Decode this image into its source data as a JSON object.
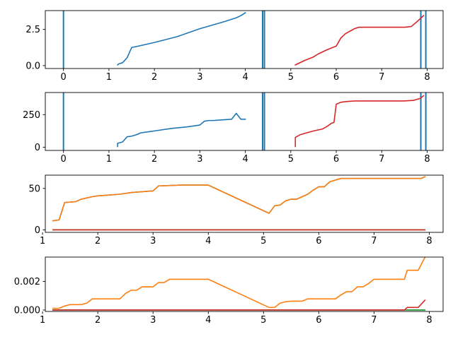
{
  "chart_data": [
    {
      "type": "line",
      "xlim": [
        -0.4,
        8.35
      ],
      "ylim": [
        -0.2,
        3.8
      ],
      "x_ticks": [
        0,
        1,
        2,
        3,
        4,
        5,
        6,
        7,
        8
      ],
      "x_tick_labels": [
        "0",
        "1",
        "2",
        "3",
        "4",
        "5",
        "6",
        "7",
        "8"
      ],
      "y_ticks": [
        0,
        2.5
      ],
      "y_tick_labels": [
        "0.0",
        "2.5"
      ],
      "vlines": [
        0,
        4.38,
        4.42,
        7.86,
        7.97
      ],
      "vline_color": "#1f77b4",
      "series": [
        {
          "color": "#1f77b4",
          "points": [
            [
              1.19,
              0.05
            ],
            [
              1.22,
              0.13
            ],
            [
              1.3,
              0.2
            ],
            [
              1.4,
              0.55
            ],
            [
              1.5,
              1.25
            ],
            [
              1.65,
              1.35
            ],
            [
              2.0,
              1.6
            ],
            [
              2.5,
              2.0
            ],
            [
              3.0,
              2.55
            ],
            [
              3.5,
              3.0
            ],
            [
              3.8,
              3.3
            ],
            [
              3.9,
              3.45
            ],
            [
              4.0,
              3.65
            ]
          ]
        },
        {
          "color": "#d62728",
          "points": [
            [
              5.1,
              0.05
            ],
            [
              5.3,
              0.35
            ],
            [
              5.5,
              0.6
            ],
            [
              5.6,
              0.8
            ],
            [
              5.8,
              1.1
            ],
            [
              6.0,
              1.35
            ],
            [
              6.1,
              1.9
            ],
            [
              6.2,
              2.2
            ],
            [
              6.4,
              2.55
            ],
            [
              6.5,
              2.65
            ],
            [
              6.8,
              2.65
            ],
            [
              7.0,
              2.65
            ],
            [
              7.5,
              2.65
            ],
            [
              7.65,
              2.7
            ],
            [
              7.8,
              3.1
            ],
            [
              7.92,
              3.45
            ]
          ]
        }
      ]
    },
    {
      "type": "line",
      "xlim": [
        -0.4,
        8.35
      ],
      "ylim": [
        -25,
        420
      ],
      "x_ticks": [
        0,
        1,
        2,
        3,
        4,
        5,
        6,
        7,
        8
      ],
      "x_tick_labels": [
        "0",
        "1",
        "2",
        "3",
        "4",
        "5",
        "6",
        "7",
        "8"
      ],
      "y_ticks": [
        0,
        250
      ],
      "y_tick_labels": [
        "0",
        "250"
      ],
      "vlines": [
        0,
        4.38,
        4.42,
        7.86,
        7.97
      ],
      "vline_color": "#1f77b4",
      "series": [
        {
          "color": "#1f77b4",
          "points": [
            [
              1.19,
              5
            ],
            [
              1.19,
              30
            ],
            [
              1.3,
              40
            ],
            [
              1.4,
              80
            ],
            [
              1.5,
              85
            ],
            [
              1.6,
              95
            ],
            [
              1.7,
              110
            ],
            [
              1.9,
              120
            ],
            [
              2.0,
              125
            ],
            [
              2.2,
              135
            ],
            [
              2.4,
              145
            ],
            [
              2.7,
              155
            ],
            [
              3.0,
              170
            ],
            [
              3.1,
              200
            ],
            [
              3.2,
              205
            ],
            [
              3.3,
              205
            ],
            [
              3.5,
              210
            ],
            [
              3.7,
              215
            ],
            [
              3.8,
              260
            ],
            [
              3.9,
              215
            ],
            [
              4.0,
              215
            ]
          ]
        },
        {
          "color": "#d62728",
          "points": [
            [
              5.1,
              5
            ],
            [
              5.1,
              75
            ],
            [
              5.2,
              95
            ],
            [
              5.3,
              105
            ],
            [
              5.5,
              125
            ],
            [
              5.7,
              140
            ],
            [
              5.8,
              160
            ],
            [
              5.9,
              185
            ],
            [
              5.95,
              190
            ],
            [
              6.0,
              330
            ],
            [
              6.1,
              345
            ],
            [
              6.2,
              350
            ],
            [
              6.4,
              355
            ],
            [
              6.5,
              355
            ],
            [
              7.0,
              355
            ],
            [
              7.5,
              355
            ],
            [
              7.7,
              360
            ],
            [
              7.85,
              375
            ],
            [
              7.92,
              395
            ]
          ]
        }
      ]
    },
    {
      "type": "line",
      "xlim": [
        1.05,
        8.25
      ],
      "ylim": [
        -3,
        66
      ],
      "x_ticks": [
        1,
        2,
        3,
        4,
        5,
        6,
        7,
        8
      ],
      "x_tick_labels": [
        "1",
        "2",
        "3",
        "4",
        "5",
        "6",
        "7",
        "8"
      ],
      "y_ticks": [
        0,
        50
      ],
      "y_tick_labels": [
        "0",
        "50"
      ],
      "vlines": [],
      "series": [
        {
          "color": "#1f77b4",
          "points": [
            [
              1.19,
              11
            ],
            [
              1.3,
              12
            ],
            [
              1.4,
              33
            ],
            [
              1.6,
              34
            ],
            [
              1.7,
              37
            ],
            [
              1.9,
              40
            ],
            [
              2.0,
              41
            ],
            [
              2.2,
              42
            ],
            [
              2.4,
              43
            ],
            [
              2.6,
              45
            ],
            [
              2.8,
              46
            ],
            [
              3.0,
              47
            ],
            [
              3.1,
              53
            ],
            [
              3.3,
              53.5
            ],
            [
              3.5,
              54
            ],
            [
              4.0,
              54
            ],
            [
              5.1,
              20
            ],
            [
              5.2,
              29
            ],
            [
              5.3,
              30
            ],
            [
              5.4,
              35
            ],
            [
              5.5,
              37
            ],
            [
              5.6,
              37
            ],
            [
              5.8,
              43
            ],
            [
              5.9,
              48
            ],
            [
              6.0,
              52
            ],
            [
              6.1,
              52
            ],
            [
              6.2,
              58
            ],
            [
              6.4,
              62
            ],
            [
              6.5,
              62
            ],
            [
              7.0,
              62
            ],
            [
              7.5,
              62
            ],
            [
              7.85,
              62
            ],
            [
              7.92,
              64
            ]
          ]
        },
        {
          "color": "#ff7f0e",
          "points": [
            [
              1.19,
              11
            ],
            [
              1.3,
              12
            ],
            [
              1.4,
              33
            ],
            [
              1.6,
              34
            ],
            [
              1.7,
              37
            ],
            [
              1.9,
              40
            ],
            [
              2.0,
              41
            ],
            [
              2.2,
              42
            ],
            [
              2.4,
              43
            ],
            [
              2.6,
              45
            ],
            [
              2.8,
              46
            ],
            [
              3.0,
              47
            ],
            [
              3.1,
              53
            ],
            [
              3.3,
              53.5
            ],
            [
              3.5,
              54
            ],
            [
              4.0,
              54
            ],
            [
              5.1,
              20
            ],
            [
              5.2,
              29
            ],
            [
              5.3,
              30
            ],
            [
              5.4,
              35
            ],
            [
              5.5,
              37
            ],
            [
              5.6,
              37
            ],
            [
              5.8,
              43
            ],
            [
              5.9,
              48
            ],
            [
              6.0,
              52
            ],
            [
              6.1,
              52
            ],
            [
              6.2,
              58
            ],
            [
              6.4,
              62
            ],
            [
              6.5,
              62
            ],
            [
              7.0,
              62
            ],
            [
              7.5,
              62
            ],
            [
              7.85,
              62
            ],
            [
              7.92,
              64
            ]
          ]
        },
        {
          "color": "#2ca02c",
          "points": [
            [
              1.19,
              0
            ],
            [
              7.92,
              0
            ]
          ]
        },
        {
          "color": "#d62728",
          "points": [
            [
              1.19,
              0
            ],
            [
              7.92,
              0
            ]
          ]
        }
      ]
    },
    {
      "type": "line",
      "xlim": [
        1.05,
        8.25
      ],
      "ylim": [
        -0.0001,
        0.0037
      ],
      "x_ticks": [
        1,
        2,
        3,
        4,
        5,
        6,
        7,
        8
      ],
      "x_tick_labels": [
        "1",
        "2",
        "3",
        "4",
        "5",
        "6",
        "7",
        "8"
      ],
      "y_ticks": [
        0,
        0.002
      ],
      "y_tick_labels": [
        "0.000",
        "0.002"
      ],
      "vlines": [],
      "series": [
        {
          "color": "#1f77b4",
          "points": [
            [
              1.19,
              0
            ],
            [
              7.92,
              0
            ]
          ]
        },
        {
          "color": "#ff7f0e",
          "points": [
            [
              1.19,
              0.00012
            ],
            [
              1.3,
              0.00012
            ],
            [
              1.4,
              0.00028
            ],
            [
              1.5,
              0.00038
            ],
            [
              1.6,
              0.00038
            ],
            [
              1.7,
              0.00038
            ],
            [
              1.8,
              0.00048
            ],
            [
              1.9,
              0.00078
            ],
            [
              2.0,
              0.00078
            ],
            [
              2.4,
              0.00078
            ],
            [
              2.5,
              0.00115
            ],
            [
              2.6,
              0.00138
            ],
            [
              2.7,
              0.00138
            ],
            [
              2.8,
              0.00162
            ],
            [
              3.0,
              0.00162
            ],
            [
              3.1,
              0.00192
            ],
            [
              3.2,
              0.00192
            ],
            [
              3.3,
              0.00215
            ],
            [
              3.5,
              0.00215
            ],
            [
              4.0,
              0.00215
            ],
            [
              5.1,
              0.00018
            ],
            [
              5.2,
              0.00018
            ],
            [
              5.3,
              0.00048
            ],
            [
              5.4,
              0.00058
            ],
            [
              5.5,
              0.00062
            ],
            [
              5.7,
              0.00062
            ],
            [
              5.8,
              0.00078
            ],
            [
              6.0,
              0.00078
            ],
            [
              6.3,
              0.00078
            ],
            [
              6.4,
              0.00105
            ],
            [
              6.5,
              0.00128
            ],
            [
              6.6,
              0.00128
            ],
            [
              6.7,
              0.00162
            ],
            [
              6.8,
              0.00162
            ],
            [
              6.9,
              0.00185
            ],
            [
              7.0,
              0.00215
            ],
            [
              7.2,
              0.00215
            ],
            [
              7.55,
              0.00215
            ],
            [
              7.6,
              0.00278
            ],
            [
              7.8,
              0.00278
            ],
            [
              7.92,
              0.00368
            ]
          ]
        },
        {
          "color": "#2ca02c",
          "points": [
            [
              1.19,
              0
            ],
            [
              7.92,
              0
            ]
          ]
        },
        {
          "color": "#d62728",
          "points": [
            [
              1.19,
              0
            ],
            [
              7.55,
              0
            ],
            [
              7.6,
              0.00018
            ],
            [
              7.8,
              0.00018
            ],
            [
              7.92,
              0.00068
            ]
          ]
        }
      ]
    }
  ]
}
